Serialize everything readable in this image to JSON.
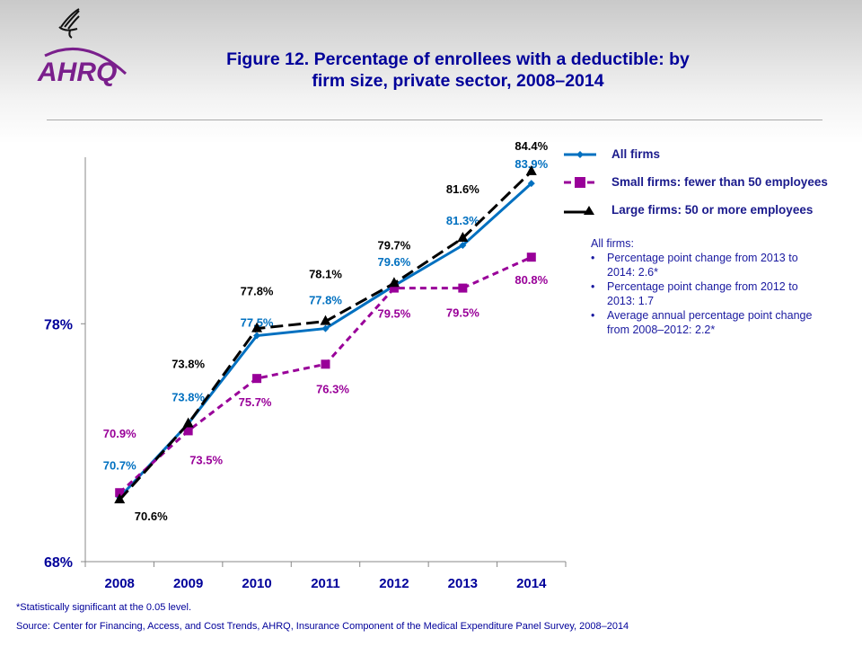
{
  "logo": {
    "text": "AHRQ",
    "color": "#7a1f8c"
  },
  "title": [
    "Figure 12. Percentage of enrollees with a deductible: by",
    "firm size, private sector, 2008–2014"
  ],
  "chart_data": {
    "type": "line",
    "categories": [
      "2008",
      "2009",
      "2010",
      "2011",
      "2012",
      "2013",
      "2014"
    ],
    "ylim": [
      68,
      85
    ],
    "yticks": [
      {
        "value": 68,
        "label": "68%"
      },
      {
        "value": 78,
        "label": "78%"
      }
    ],
    "grid": false,
    "legend_position": "right",
    "series": [
      {
        "name": "All firms",
        "color": "#0070c0",
        "marker": "diamond",
        "dash": "solid",
        "values": [
          70.7,
          73.8,
          77.5,
          77.8,
          79.6,
          81.3,
          83.9
        ],
        "labels": [
          "70.7%",
          "73.8%",
          "77.5%",
          "77.8%",
          "79.6%",
          "81.3%",
          "83.9%"
        ]
      },
      {
        "name": "Small firms: fewer than 50 employees",
        "color": "#990099",
        "marker": "square",
        "dash": "dashed",
        "values": [
          70.9,
          73.5,
          75.7,
          76.3,
          79.5,
          79.5,
          80.8
        ],
        "labels": [
          "70.9%",
          "73.5%",
          "75.7%",
          "76.3%",
          "79.5%",
          "79.5%",
          "80.8%"
        ]
      },
      {
        "name": "Large firms: 50 or more employees",
        "color": "#000000",
        "marker": "triangle",
        "dash": "longdash",
        "values": [
          70.6,
          73.8,
          77.8,
          78.1,
          79.7,
          81.6,
          84.4
        ],
        "labels": [
          "70.6%",
          "73.8%",
          "77.8%",
          "78.1%",
          "79.7%",
          "81.6%",
          "84.4%"
        ]
      }
    ]
  },
  "notes": {
    "heading": "All firms:",
    "items": [
      "Percentage point change from 2013 to 2014: 2.6*",
      "Percentage point change from 2012 to 2013: 1.7",
      "Average annual percentage point change from 2008–2012:  2.2*"
    ]
  },
  "footnote": "*Statistically significant at the 0.05 level.",
  "source": "Source: Center for Financing, Access, and Cost Trends, AHRQ, Insurance Component of the Medical Expenditure Panel Survey,  2008–2014"
}
